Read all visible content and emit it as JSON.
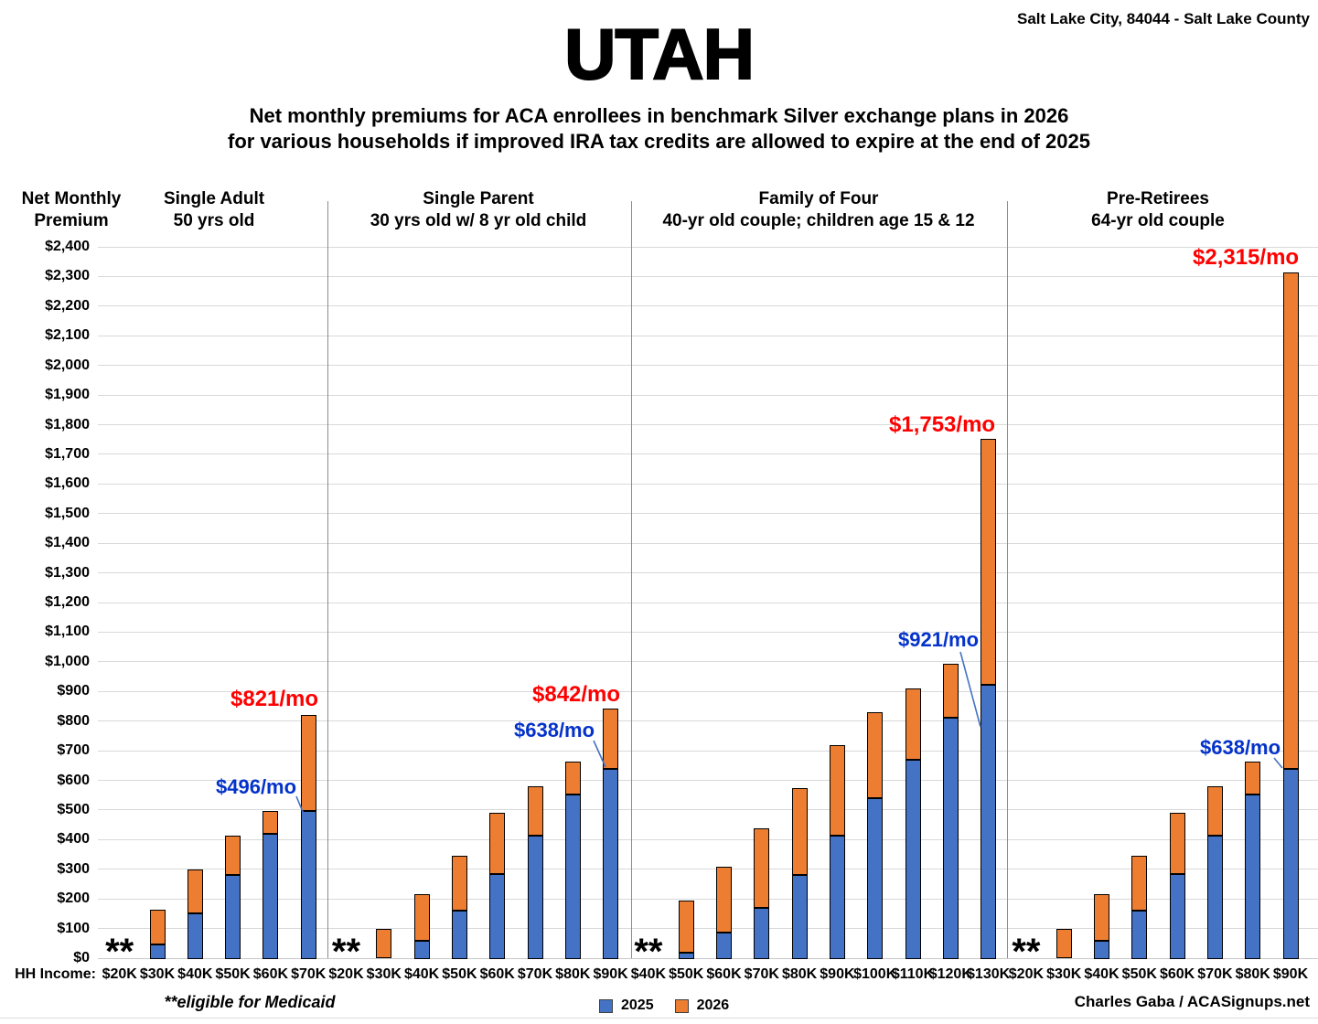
{
  "header": {
    "location": "Salt Lake City, 84044 - Salt Lake County",
    "title": "UTAH",
    "subtitle_line1": "Net monthly premiums for ACA enrollees in benchmark Silver exchange plans in 2026",
    "subtitle_line2": "for various households if improved IRA tax credits are allowed to expire at the end of 2025"
  },
  "axis": {
    "y_title_line1": "Net Monthly",
    "y_title_line2": "Premium",
    "x_title": "HH Income:",
    "y_min": 0,
    "y_max": 2400,
    "y_step": 100
  },
  "chart_data": {
    "type": "bar",
    "stacked": true,
    "grid": true,
    "ylim": [
      0,
      2400
    ],
    "series_names": [
      "2025",
      "2026"
    ],
    "colors": {
      "bar_2025": "#4472C4",
      "bar_2026": "#ED7D31",
      "annotation_2025": "#0432CA",
      "annotation_2026": "#FF0000",
      "leader_line": "#4472C4"
    },
    "groups": [
      {
        "title_line1": "Single Adult",
        "title_line2": "50 yrs old",
        "categories": [
          "$20K",
          "$30K",
          "$40K",
          "$50K",
          "$60K",
          "$70K"
        ],
        "medicaid_flags": [
          true,
          false,
          false,
          false,
          false,
          false
        ],
        "series": {
          "2025": [
            null,
            45,
            150,
            280,
            420,
            496
          ],
          "2026": [
            null,
            165,
            298,
            413,
            498,
            821
          ]
        },
        "annotation_2025": "$496/mo",
        "annotation_2026": "$821/mo"
      },
      {
        "title_line1": "Single Parent",
        "title_line2": "30 yrs old w/ 8 yr old child",
        "categories": [
          "$20K",
          "$30K",
          "$40K",
          "$50K",
          "$60K",
          "$70K",
          "$80K",
          "$90K"
        ],
        "medicaid_flags": [
          true,
          false,
          false,
          false,
          false,
          false,
          false,
          false
        ],
        "series": {
          "2025": [
            null,
            0,
            60,
            160,
            285,
            413,
            553,
            638
          ],
          "2026": [
            null,
            100,
            215,
            345,
            490,
            580,
            663,
            842
          ]
        },
        "annotation_2025": "$638/mo",
        "annotation_2026": "$842/mo"
      },
      {
        "title_line1": "Family of Four",
        "title_line2": "40-yr old couple; children age 15 & 12",
        "categories": [
          "$40K",
          "$50K",
          "$60K",
          "$70K",
          "$80K",
          "$90K",
          "$100K",
          "$110K",
          "$120K",
          "$130K"
        ],
        "medicaid_flags": [
          true,
          false,
          false,
          false,
          false,
          false,
          false,
          false,
          false,
          false
        ],
        "series": {
          "2025": [
            null,
            20,
            85,
            170,
            280,
            413,
            540,
            668,
            810,
            921
          ],
          "2026": [
            null,
            195,
            310,
            438,
            575,
            720,
            830,
            911,
            993,
            1753
          ]
        },
        "annotation_2025": "$921/mo",
        "annotation_2026": "$1,753/mo"
      },
      {
        "title_line1": "Pre-Retirees",
        "title_line2": "64-yr old couple",
        "categories": [
          "$20K",
          "$30K",
          "$40K",
          "$50K",
          "$60K",
          "$70K",
          "$80K",
          "$90K"
        ],
        "medicaid_flags": [
          true,
          false,
          false,
          false,
          false,
          false,
          false,
          false
        ],
        "series": {
          "2025": [
            null,
            0,
            60,
            160,
            285,
            413,
            553,
            638
          ],
          "2026": [
            null,
            100,
            215,
            345,
            490,
            580,
            663,
            2315
          ]
        },
        "annotation_2025": "$638/mo",
        "annotation_2026": "$2,315/mo"
      }
    ]
  },
  "legend": [
    {
      "label": "2025",
      "color": "#4472C4"
    },
    {
      "label": "2026",
      "color": "#ED7D31"
    }
  ],
  "footnotes": {
    "medicaid_marker": "**",
    "medicaid_note": "**eligible for Medicaid",
    "credit": "Charles Gaba / ACASignups.net"
  }
}
